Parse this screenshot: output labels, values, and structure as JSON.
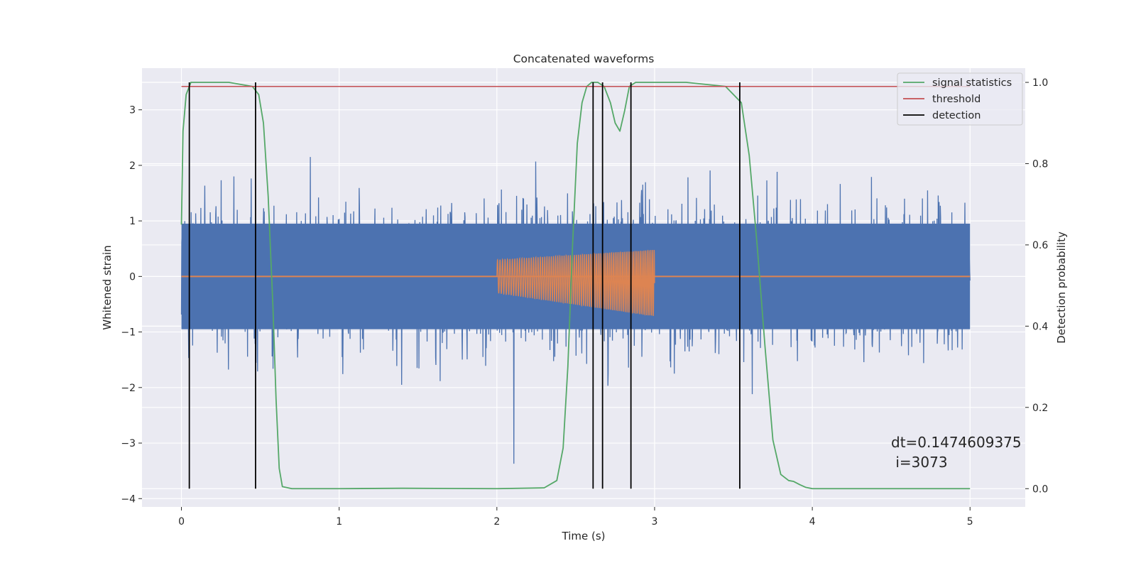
{
  "chart_data": {
    "type": "line",
    "title": "Concatenated waveforms",
    "xlabel": "Time (s)",
    "ylabel": "Whitened strain",
    "y2label": "Detection probability",
    "xlim": [
      -0.25,
      5.35
    ],
    "ylim": [
      -4.15,
      3.75
    ],
    "y2lim": [
      -0.045,
      1.035
    ],
    "x_ticks": [
      0,
      1,
      2,
      3,
      4,
      5
    ],
    "y_ticks": [
      -4,
      -3,
      -2,
      -1,
      0,
      1,
      2,
      3
    ],
    "y2_ticks": [
      0.0,
      0.2,
      0.4,
      0.6,
      0.8,
      1.0
    ],
    "grid": true,
    "legend_position": "top-right",
    "legend": [
      {
        "label": "signal statistics",
        "color": "#55a868"
      },
      {
        "label": "threshold",
        "color": "#c44e52"
      },
      {
        "label": "detection",
        "color": "#000000"
      }
    ],
    "series": [
      {
        "role": "whitened-noise",
        "color": "#4c72b0",
        "x_range": [
          0,
          5
        ],
        "envelope": 2.8,
        "axis": "left"
      },
      {
        "role": "injected-waveform",
        "color": "#dd8452",
        "x_range": [
          2.0,
          3.0
        ],
        "amplitude_start": 0.3,
        "amplitude_end": 0.6,
        "axis": "left"
      },
      {
        "name": "signal statistics",
        "color": "#55a868",
        "axis": "right",
        "x": [
          0,
          0.01,
          0.03,
          0.06,
          0.1,
          0.3,
          0.45,
          0.49,
          0.52,
          0.55,
          0.58,
          0.6,
          0.62,
          0.64,
          0.7,
          1.0,
          1.4,
          2.0,
          2.3,
          2.38,
          2.42,
          2.45,
          2.48,
          2.51,
          2.54,
          2.57,
          2.6,
          2.64,
          2.68,
          2.72,
          2.75,
          2.78,
          2.81,
          2.84,
          2.88,
          2.95,
          3.2,
          3.45,
          3.55,
          3.6,
          3.65,
          3.7,
          3.75,
          3.8,
          3.85,
          3.88,
          3.92,
          3.96,
          4.0,
          4.5,
          5.0
        ],
        "y": [
          0.65,
          0.88,
          0.97,
          1.0,
          1.0,
          1.0,
          0.99,
          0.97,
          0.9,
          0.72,
          0.45,
          0.22,
          0.05,
          0.005,
          0.0,
          0.0,
          0.001,
          0.0,
          0.002,
          0.02,
          0.1,
          0.3,
          0.6,
          0.85,
          0.95,
          0.99,
          1.0,
          1.0,
          0.99,
          0.95,
          0.9,
          0.88,
          0.93,
          0.99,
          1.0,
          1.0,
          1.0,
          0.99,
          0.95,
          0.82,
          0.6,
          0.35,
          0.12,
          0.035,
          0.02,
          0.018,
          0.01,
          0.003,
          0.0,
          0.0,
          0.0
        ]
      },
      {
        "name": "threshold",
        "color": "#c44e52",
        "axis": "right",
        "x": [
          0,
          5
        ],
        "y": [
          0.99,
          0.99
        ]
      }
    ],
    "detections": [
      0.05,
      0.47,
      2.61,
      2.67,
      2.85,
      3.54
    ],
    "annotation_lines": [
      "dt=0.1474609375",
      " i=3073"
    ]
  }
}
